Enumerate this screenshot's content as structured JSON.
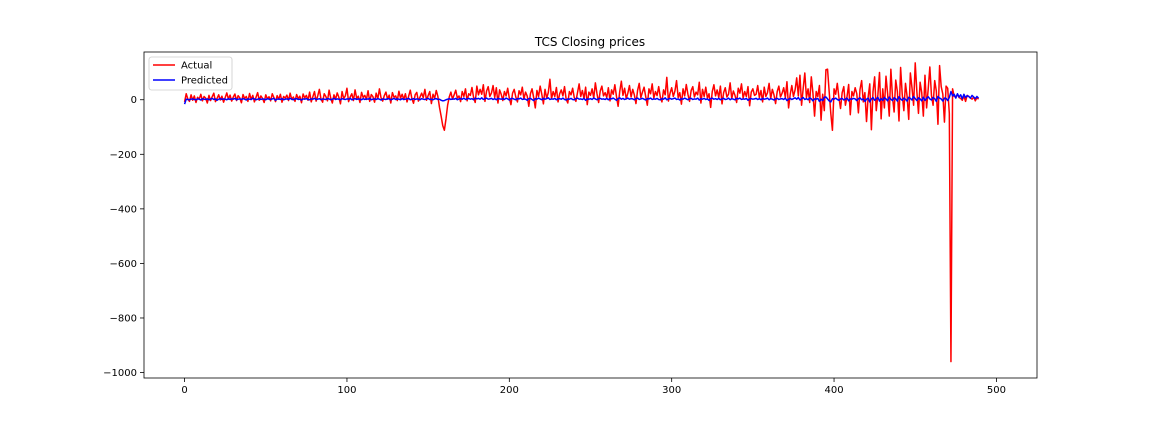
{
  "chart_data": {
    "type": "line",
    "title": "TCS Closing prices",
    "xlabel": "",
    "ylabel": "",
    "xlim": [
      -25,
      525
    ],
    "ylim": [
      -1020,
      175
    ],
    "xticks": [
      0,
      100,
      200,
      300,
      400,
      500
    ],
    "yticks": [
      -1000,
      -800,
      -600,
      -400,
      -200,
      0
    ],
    "grid": false,
    "legend": "top-left",
    "x_start": 0,
    "series": [
      {
        "name": "Actual",
        "color": "#ff0000",
        "values": [
          -8,
          22,
          3,
          -6,
          18,
          -2,
          14,
          -10,
          9,
          2,
          20,
          -4,
          12,
          6,
          -12,
          16,
          -3,
          11,
          24,
          -7,
          5,
          18,
          -1,
          13,
          -9,
          8,
          25,
          2,
          17,
          -5,
          10,
          21,
          -3,
          15,
          7,
          -11,
          19,
          4,
          12,
          -6,
          23,
          1,
          16,
          -8,
          9,
          26,
          -2,
          14,
          5,
          -10,
          18,
          3,
          11,
          -4,
          22,
          8,
          -7,
          15,
          2,
          20,
          -9,
          12,
          6,
          17,
          -3,
          24,
          1,
          10,
          -6,
          19,
          4,
          13,
          -11,
          21,
          7,
          16,
          -2,
          28,
          -8,
          11,
          30,
          -5,
          14,
          38,
          3,
          -9,
          22,
          12,
          -4,
          35,
          6,
          -12,
          18,
          2,
          25,
          9,
          -15,
          30,
          4,
          14,
          42,
          -7,
          10,
          22,
          -3,
          36,
          5,
          13,
          -10,
          27,
          8,
          16,
          1,
          33,
          -6,
          19,
          11,
          -9,
          24,
          3,
          40,
          7,
          -5,
          15,
          28,
          2,
          17,
          -12,
          26,
          9,
          14,
          -3,
          31,
          6,
          20,
          1,
          22,
          -8,
          13,
          35,
          4,
          -13,
          18,
          27,
          -5,
          10,
          24,
          8,
          38,
          -2,
          15,
          30,
          -14,
          20,
          5,
          34,
          12,
          -28,
          -60,
          -95,
          -112,
          -70,
          -20,
          10,
          28,
          2,
          18,
          35,
          6,
          14,
          -7,
          30,
          12,
          40,
          -4,
          22,
          16,
          45,
          8,
          -10,
          50,
          18,
          38,
          20,
          55,
          -6,
          32,
          48,
          12,
          25,
          52,
          8,
          44,
          -12,
          36,
          20,
          -3,
          30,
          14,
          42,
          6,
          -18,
          24,
          38,
          10,
          -8,
          33,
          18,
          46,
          2,
          28,
          14,
          -24,
          22,
          40,
          8,
          -30,
          34,
          12,
          50,
          20,
          -15,
          38,
          6,
          26,
          75,
          4,
          30,
          12,
          45,
          -8,
          22,
          36,
          14,
          48,
          2,
          -12,
          30,
          18,
          42,
          8,
          -6,
          26,
          58,
          12,
          34,
          4,
          46,
          -18,
          28,
          16,
          40,
          6,
          62,
          22,
          -10,
          32,
          50,
          14,
          26,
          8,
          44,
          -4,
          36,
          20,
          55,
          12,
          -24,
          30,
          68,
          16,
          42,
          4,
          24,
          52,
          10,
          38,
          18,
          -14,
          34,
          60,
          8,
          28,
          46,
          12,
          -20,
          40,
          22,
          58,
          6,
          30,
          15,
          48,
          10,
          -8,
          36,
          18,
          82,
          -5,
          24,
          44,
          12,
          32,
          70,
          8,
          26,
          -16,
          40,
          14,
          56,
          20,
          -6,
          34,
          48,
          10,
          28,
          18,
          64,
          -12,
          38,
          12,
          46,
          6,
          22,
          -28,
          30,
          55,
          14,
          36,
          8,
          50,
          -15,
          26,
          44,
          10,
          20,
          62,
          4,
          32,
          16,
          -10,
          42,
          24,
          58,
          6,
          30,
          12,
          48,
          -22,
          28,
          40,
          16,
          20,
          52,
          8,
          34,
          -8,
          46,
          12,
          26,
          60,
          4,
          38,
          18,
          -14,
          30,
          50,
          10,
          24,
          44,
          8,
          66,
          -30,
          20,
          52,
          12,
          36,
          80,
          14,
          90,
          -20,
          42,
          98,
          8,
          40,
          -10,
          84,
          24,
          -60,
          30,
          12,
          52,
          -75,
          20,
          -40,
          110,
          112,
          30,
          -50,
          -112,
          40,
          20,
          60,
          8,
          -32,
          26,
          48,
          -20,
          12,
          56,
          -55,
          30,
          14,
          44,
          22,
          -48,
          38,
          70,
          -8,
          26,
          -80,
          10,
          58,
          -110,
          30,
          84,
          -40,
          18,
          100,
          -70,
          40,
          -30,
          86,
          22,
          -60,
          112,
          10,
          -45,
          72,
          30,
          -78,
          118,
          20,
          -40,
          60,
          12,
          -72,
          98,
          44,
          -20,
          135,
          30,
          -50,
          64,
          26,
          -60,
          90,
          -30,
          40,
          120,
          16,
          -20,
          70,
          32,
          -90,
          125,
          48,
          20,
          -82,
          50,
          42,
          -50,
          -960,
          40,
          12,
          10,
          20,
          8,
          5,
          -2,
          14,
          -6,
          16,
          12,
          6,
          2,
          10,
          -4,
          8,
          2
        ]
      },
      {
        "name": "Predicted",
        "color": "#0000ff",
        "values": [
          -16,
          2,
          1,
          0,
          2,
          3,
          1,
          0,
          3,
          2,
          -1,
          4,
          2,
          1,
          3,
          0,
          2,
          5,
          1,
          3,
          -2,
          2,
          4,
          1,
          3,
          2,
          0,
          4,
          1,
          3,
          2,
          5,
          0,
          2,
          3,
          1,
          4,
          2,
          -1,
          3,
          2,
          1,
          5,
          3,
          0,
          2,
          4,
          1,
          3,
          2,
          0,
          4,
          2,
          1,
          3,
          5,
          -2,
          2,
          3,
          1,
          4,
          0,
          2,
          3,
          1,
          5,
          2,
          0,
          3,
          4,
          1,
          2,
          -1,
          3,
          2,
          4,
          1,
          0,
          3,
          2,
          5,
          1,
          2,
          4,
          0,
          3,
          2,
          1,
          4,
          3,
          0,
          2,
          5,
          1,
          3,
          2,
          0,
          4,
          2,
          1,
          3,
          2,
          5,
          0,
          2,
          4,
          1,
          3,
          2,
          0,
          4,
          1,
          3,
          2,
          5,
          0,
          2,
          3,
          1,
          4,
          2,
          -1,
          3,
          2,
          1,
          4,
          3,
          0,
          2,
          5,
          1,
          3,
          2,
          0,
          4,
          1,
          2,
          3,
          5,
          0,
          2,
          4,
          1,
          3,
          2,
          0,
          4,
          2,
          1,
          3,
          5,
          1,
          2,
          0,
          3,
          4,
          1,
          2,
          -2,
          -4,
          -3,
          0,
          2,
          4,
          1,
          3,
          2,
          5,
          0,
          3,
          4,
          2,
          6,
          1,
          3,
          5,
          2,
          4,
          0,
          6,
          3,
          5,
          2,
          7,
          1,
          4,
          6,
          2,
          3,
          5,
          1,
          4,
          0,
          5,
          3,
          2,
          4,
          1,
          6,
          3,
          -1,
          4,
          5,
          2,
          0,
          4,
          3,
          6,
          1,
          3,
          2,
          -2,
          4,
          5,
          1,
          -3,
          4,
          2,
          6,
          3,
          0,
          5,
          2,
          4,
          7,
          1,
          3,
          2,
          5,
          0,
          3,
          4,
          2,
          6,
          1,
          -1,
          3,
          2,
          5,
          1,
          0,
          4,
          6,
          2,
          3,
          1,
          5,
          -2,
          3,
          2,
          4,
          1,
          6,
          3,
          0,
          4,
          5,
          2,
          3,
          1,
          5,
          0,
          4,
          3,
          6,
          2,
          -2,
          4,
          7,
          2,
          5,
          1,
          3,
          6,
          2,
          4,
          3,
          0,
          4,
          6,
          1,
          3,
          5,
          2,
          -1,
          4,
          3,
          6,
          1,
          3,
          2,
          5,
          1,
          0,
          4,
          2,
          7,
          0,
          3,
          5,
          2,
          4,
          6,
          1,
          3,
          -1,
          4,
          2,
          6,
          3,
          0,
          4,
          5,
          1,
          3,
          2,
          6,
          -1,
          4,
          2,
          5,
          1,
          3,
          -2,
          4,
          6,
          2,
          4,
          1,
          5,
          0,
          3,
          5,
          1,
          2,
          6,
          0,
          4,
          2,
          0,
          5,
          3,
          6,
          1,
          3,
          2,
          5,
          -2,
          3,
          4,
          2,
          3,
          5,
          1,
          4,
          0,
          5,
          2,
          3,
          6,
          0,
          4,
          2,
          -1,
          3,
          5,
          1,
          3,
          4,
          1,
          6,
          -3,
          2,
          5,
          1,
          4,
          7,
          2,
          8,
          -1,
          4,
          8,
          1,
          4,
          0,
          7,
          3,
          -4,
          3,
          2,
          5,
          -6,
          2,
          -3,
          9,
          10,
          3,
          -4,
          -8,
          4,
          2,
          6,
          1,
          -2,
          3,
          5,
          -1,
          2,
          6,
          -4,
          3,
          2,
          5,
          3,
          -3,
          4,
          7,
          0,
          3,
          -6,
          2,
          6,
          -8,
          3,
          8,
          -2,
          2,
          9,
          -5,
          4,
          -2,
          8,
          3,
          -4,
          10,
          2,
          -3,
          7,
          4,
          -5,
          11,
          3,
          -2,
          6,
          2,
          -5,
          9,
          5,
          -1,
          12,
          4,
          -3,
          7,
          3,
          -4,
          9,
          -2,
          5,
          11,
          3,
          -1,
          8,
          4,
          -6,
          12,
          6,
          3,
          -5,
          6,
          5,
          -3,
          8,
          30,
          14,
          20,
          6,
          22,
          10,
          18,
          4,
          20,
          8,
          15,
          12,
          6,
          16,
          10,
          4,
          12,
          6
        ]
      }
    ]
  }
}
